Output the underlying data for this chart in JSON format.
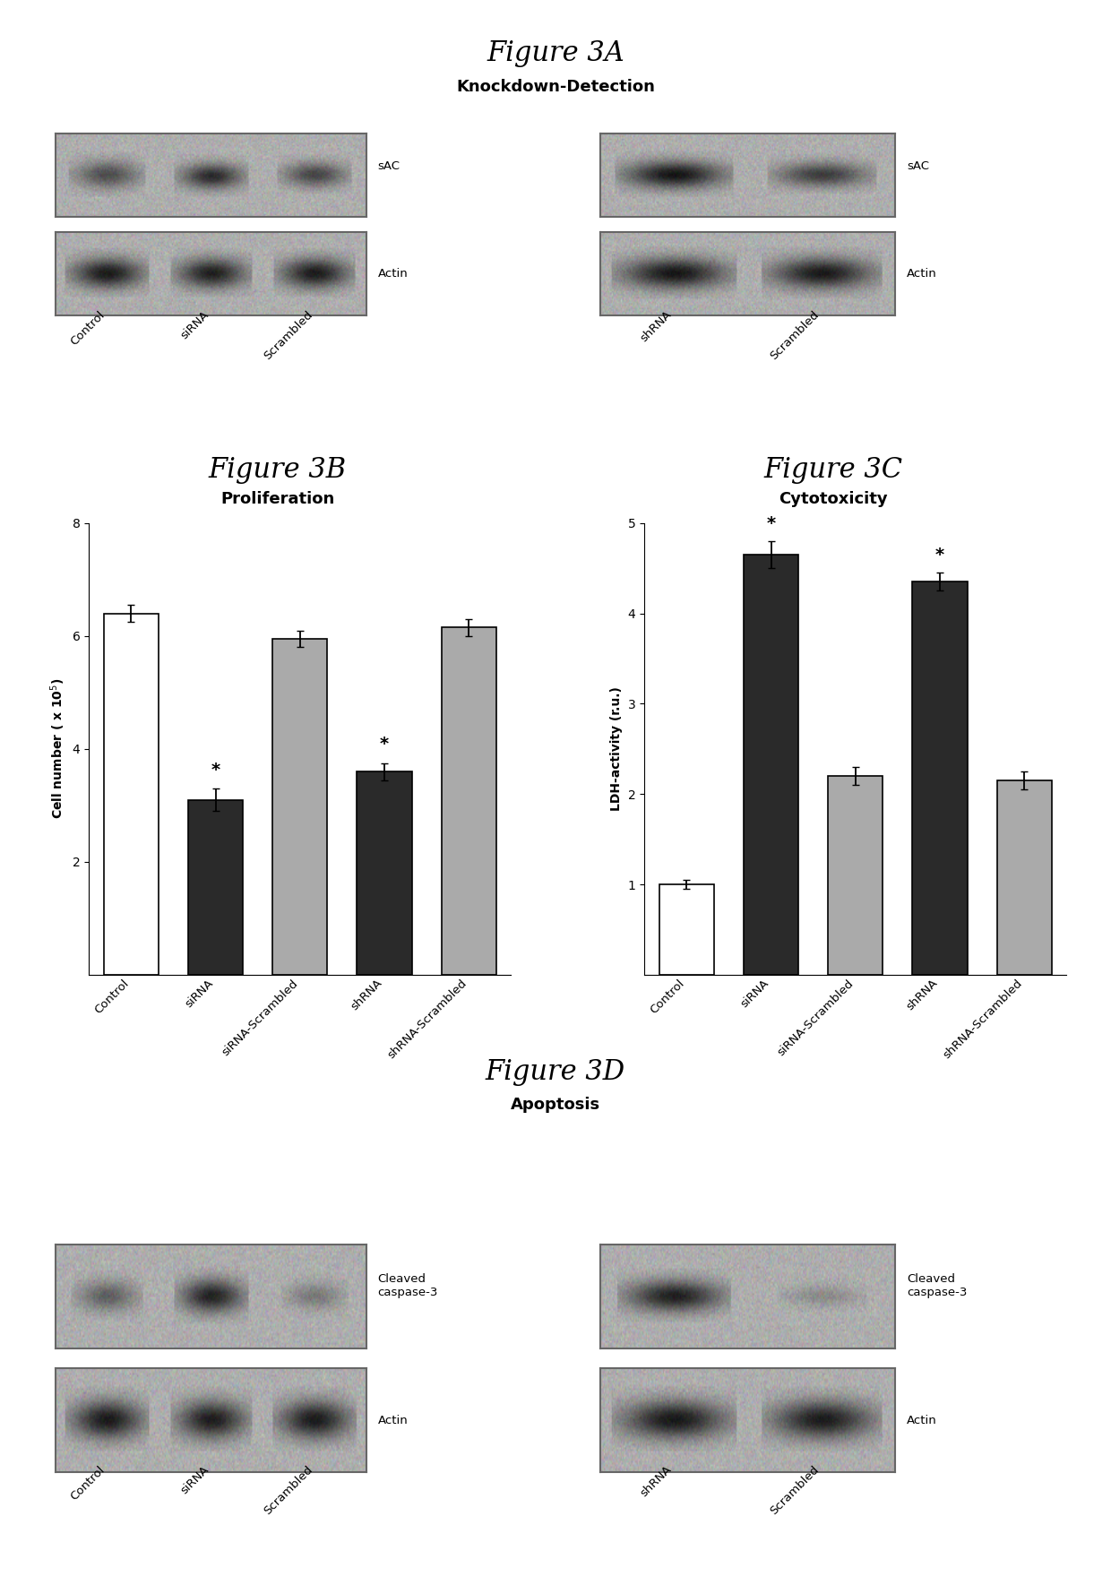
{
  "fig3A_title": "Figure 3A",
  "fig3A_subtitle": "Knockdown-Detection",
  "fig3B_title": "Figure 3B",
  "fig3B_subtitle": "Proliferation",
  "fig3C_title": "Figure 3C",
  "fig3C_subtitle": "Cytotoxicity",
  "fig3D_title": "Figure 3D",
  "fig3D_subtitle": "Apoptosis",
  "prolif_categories": [
    "Control",
    "siRNA",
    "siRNA-Scrambled",
    "shRNA",
    "shRNA-Scrambled"
  ],
  "prolif_values": [
    6.4,
    3.1,
    5.95,
    3.6,
    6.15
  ],
  "prolif_errors": [
    0.15,
    0.2,
    0.15,
    0.15,
    0.15
  ],
  "prolif_colors": [
    "#ffffff",
    "#2a2a2a",
    "#aaaaaa",
    "#2a2a2a",
    "#aaaaaa"
  ],
  "prolif_star": [
    false,
    true,
    false,
    true,
    false
  ],
  "prolif_ylim": [
    0,
    8
  ],
  "prolif_yticks": [
    2,
    4,
    6,
    8
  ],
  "cyto_categories": [
    "Control",
    "siRNA",
    "siRNA-Scrambled",
    "shRNA",
    "shRNA-Scrambled"
  ],
  "cyto_values": [
    1.0,
    4.65,
    2.2,
    4.35,
    2.15
  ],
  "cyto_errors": [
    0.05,
    0.15,
    0.1,
    0.1,
    0.1
  ],
  "cyto_colors": [
    "#ffffff",
    "#2a2a2a",
    "#aaaaaa",
    "#2a2a2a",
    "#aaaaaa"
  ],
  "cyto_star": [
    false,
    true,
    false,
    true,
    false
  ],
  "cyto_ylim": [
    0,
    5
  ],
  "cyto_yticks": [
    1,
    2,
    3,
    4,
    5
  ],
  "blot_bg": "#b0b0b0",
  "blot_dark": "#111111",
  "blot_medium": "#555555",
  "blot_light": "#888888",
  "bar_edge_color": "#000000",
  "bar_linewidth": 1.2,
  "title_fontsize": 22,
  "subtitle_fontsize": 13
}
